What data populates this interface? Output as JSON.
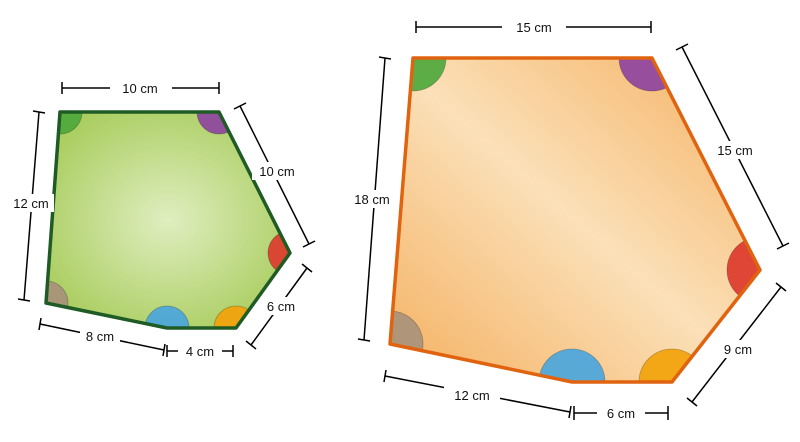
{
  "small_pentagon": {
    "top": "10 cm",
    "upper_right": "10 cm",
    "lower_right": "6 cm",
    "bottom_right": "4 cm",
    "bottom_left": "8 cm",
    "left": "12 cm",
    "colors": {
      "fill_center": "#dfeec0",
      "fill_edge": "#a8cc5c",
      "stroke": "#1f5c25"
    }
  },
  "large_pentagon": {
    "top": "15 cm",
    "upper_right": "15 cm",
    "lower_right": "9 cm",
    "bottom_right": "6 cm",
    "bottom_left": "12 cm",
    "left": "18 cm",
    "colors": {
      "fill_light": "#fbe0b8",
      "fill_edge": "#f4b060",
      "stroke": "#e06410"
    }
  },
  "angle_colors": {
    "green": "#4fa83d",
    "purple": "#8e44a0",
    "red": "#dc3a2c",
    "orange": "#f2a20a",
    "blue": "#4aa6dc",
    "tan": "#a8917a"
  }
}
